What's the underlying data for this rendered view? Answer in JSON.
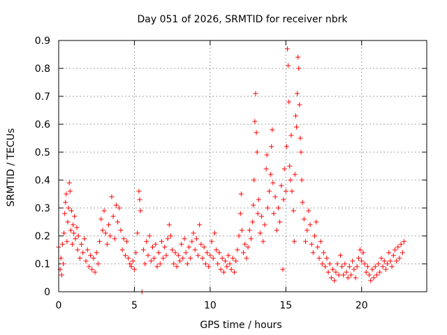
{
  "chart_data": {
    "type": "scatter",
    "title": "Day 051 of 2026, SRMTID for receiver nbrk",
    "xlabel": "GPS time / hours",
    "ylabel": "SRMTID / TECUs",
    "xlim": [
      0,
      24.3
    ],
    "ylim": [
      0,
      0.9
    ],
    "xticks": [
      0,
      5,
      10,
      15,
      20
    ],
    "xtick_labels": [
      "0",
      "5",
      "10",
      "15",
      "20"
    ],
    "yticks": [
      0,
      0.1,
      0.2,
      0.3,
      0.4,
      0.5,
      0.6,
      0.7,
      0.8,
      0.9
    ],
    "ytick_labels": [
      "0",
      "0.1",
      "0.2",
      "0.3",
      "0.4",
      "0.5",
      "0.6",
      "0.7",
      "0.8",
      "0.9"
    ],
    "grid": true,
    "marker": "+",
    "color": "#ff0000",
    "series": [
      {
        "name": "SRMTID",
        "points": [
          [
            0.0,
            0.16
          ],
          [
            0.1,
            0.08
          ],
          [
            0.15,
            0.12
          ],
          [
            0.2,
            0.06
          ],
          [
            0.25,
            0.17
          ],
          [
            0.3,
            0.1
          ],
          [
            0.35,
            0.21
          ],
          [
            0.4,
            0.28
          ],
          [
            0.45,
            0.32
          ],
          [
            0.5,
            0.35
          ],
          [
            0.55,
            0.18
          ],
          [
            0.6,
            0.25
          ],
          [
            0.65,
            0.3
          ],
          [
            0.7,
            0.39
          ],
          [
            0.75,
            0.36
          ],
          [
            0.8,
            0.22
          ],
          [
            0.85,
            0.29
          ],
          [
            0.9,
            0.17
          ],
          [
            0.95,
            0.24
          ],
          [
            1.0,
            0.21
          ],
          [
            1.05,
            0.27
          ],
          [
            1.1,
            0.19
          ],
          [
            1.2,
            0.23
          ],
          [
            1.25,
            0.15
          ],
          [
            1.3,
            0.2
          ],
          [
            1.4,
            0.12
          ],
          [
            1.5,
            0.17
          ],
          [
            1.6,
            0.14
          ],
          [
            1.7,
            0.19
          ],
          [
            1.8,
            0.11
          ],
          [
            1.9,
            0.15
          ],
          [
            2.0,
            0.09
          ],
          [
            2.1,
            0.13
          ],
          [
            2.2,
            0.08
          ],
          [
            2.3,
            0.12
          ],
          [
            2.4,
            0.07
          ],
          [
            2.5,
            0.14
          ],
          [
            2.6,
            0.1
          ],
          [
            2.7,
            0.18
          ],
          [
            2.8,
            0.26
          ],
          [
            2.9,
            0.22
          ],
          [
            3.0,
            0.29
          ],
          [
            3.1,
            0.21
          ],
          [
            3.2,
            0.17
          ],
          [
            3.3,
            0.24
          ],
          [
            3.4,
            0.2
          ],
          [
            3.5,
            0.34
          ],
          [
            3.6,
            0.27
          ],
          [
            3.7,
            0.19
          ],
          [
            3.8,
            0.31
          ],
          [
            3.9,
            0.25
          ],
          [
            4.0,
            0.3
          ],
          [
            4.1,
            0.22
          ],
          [
            4.2,
            0.15
          ],
          [
            4.3,
            0.19
          ],
          [
            4.4,
            0.13
          ],
          [
            4.5,
            0.18
          ],
          [
            4.6,
            0.12
          ],
          [
            4.7,
            0.1
          ],
          [
            4.8,
            0.09
          ],
          [
            4.9,
            0.11
          ],
          [
            5.0,
            0.08
          ],
          [
            5.1,
            0.14
          ],
          [
            5.2,
            0.21
          ],
          [
            5.3,
            0.36
          ],
          [
            5.35,
            0.33
          ],
          [
            5.4,
            0.29
          ],
          [
            5.5,
            0.0
          ],
          [
            5.6,
            0.15
          ],
          [
            5.7,
            0.1
          ],
          [
            5.8,
            0.18
          ],
          [
            5.9,
            0.13
          ],
          [
            6.0,
            0.2
          ],
          [
            6.1,
            0.11
          ],
          [
            6.2,
            0.16
          ],
          [
            6.3,
            0.12
          ],
          [
            6.4,
            0.17
          ],
          [
            6.5,
            0.09
          ],
          [
            6.6,
            0.14
          ],
          [
            6.7,
            0.1
          ],
          [
            6.8,
            0.18
          ],
          [
            6.9,
            0.12
          ],
          [
            7.0,
            0.16
          ],
          [
            7.1,
            0.13
          ],
          [
            7.2,
            0.19
          ],
          [
            7.3,
            0.24
          ],
          [
            7.4,
            0.2
          ],
          [
            7.5,
            0.15
          ],
          [
            7.6,
            0.1
          ],
          [
            7.7,
            0.14
          ],
          [
            7.8,
            0.09
          ],
          [
            7.9,
            0.13
          ],
          [
            8.0,
            0.11
          ],
          [
            8.1,
            0.17
          ],
          [
            8.2,
            0.12
          ],
          [
            8.3,
            0.19
          ],
          [
            8.4,
            0.14
          ],
          [
            8.5,
            0.1
          ],
          [
            8.6,
            0.16
          ],
          [
            8.7,
            0.12
          ],
          [
            8.8,
            0.18
          ],
          [
            8.9,
            0.21
          ],
          [
            9.0,
            0.15
          ],
          [
            9.1,
            0.19
          ],
          [
            9.2,
            0.13
          ],
          [
            9.3,
            0.24
          ],
          [
            9.4,
            0.17
          ],
          [
            9.5,
            0.12
          ],
          [
            9.6,
            0.16
          ],
          [
            9.7,
            0.1
          ],
          [
            9.8,
            0.14
          ],
          [
            9.9,
            0.09
          ],
          [
            10.0,
            0.13
          ],
          [
            10.1,
            0.18
          ],
          [
            10.2,
            0.12
          ],
          [
            10.3,
            0.21
          ],
          [
            10.4,
            0.15
          ],
          [
            10.5,
            0.1
          ],
          [
            10.6,
            0.14
          ],
          [
            10.7,
            0.08
          ],
          [
            10.8,
            0.12
          ],
          [
            10.9,
            0.07
          ],
          [
            11.0,
            0.11
          ],
          [
            11.1,
            0.09
          ],
          [
            11.2,
            0.13
          ],
          [
            11.3,
            0.1
          ],
          [
            11.4,
            0.08
          ],
          [
            11.5,
            0.12
          ],
          [
            11.6,
            0.07
          ],
          [
            11.7,
            0.11
          ],
          [
            11.8,
            0.15
          ],
          [
            11.9,
            0.2
          ],
          [
            12.0,
            0.28
          ],
          [
            12.05,
            0.35
          ],
          [
            12.1,
            0.22
          ],
          [
            12.2,
            0.14
          ],
          [
            12.3,
            0.17
          ],
          [
            12.4,
            0.12
          ],
          [
            12.5,
            0.16
          ],
          [
            12.6,
            0.22
          ],
          [
            12.7,
            0.19
          ],
          [
            12.8,
            0.25
          ],
          [
            12.85,
            0.31
          ],
          [
            12.9,
            0.4
          ],
          [
            12.95,
            0.61
          ],
          [
            13.0,
            0.71
          ],
          [
            13.05,
            0.57
          ],
          [
            13.1,
            0.5
          ],
          [
            13.15,
            0.28
          ],
          [
            13.2,
            0.33
          ],
          [
            13.3,
            0.21
          ],
          [
            13.4,
            0.27
          ],
          [
            13.5,
            0.18
          ],
          [
            13.6,
            0.24
          ],
          [
            13.7,
            0.44
          ],
          [
            13.75,
            0.49
          ],
          [
            13.8,
            0.3
          ],
          [
            13.9,
            0.36
          ],
          [
            14.0,
            0.42
          ],
          [
            14.05,
            0.52
          ],
          [
            14.1,
            0.58
          ],
          [
            14.15,
            0.39
          ],
          [
            14.2,
            0.28
          ],
          [
            14.3,
            0.34
          ],
          [
            14.4,
            0.22
          ],
          [
            14.5,
            0.3
          ],
          [
            14.6,
            0.25
          ],
          [
            14.7,
            0.38
          ],
          [
            14.8,
            0.08
          ],
          [
            14.85,
            0.33
          ],
          [
            14.9,
            0.44
          ],
          [
            15.0,
            0.36
          ],
          [
            15.05,
            0.52
          ],
          [
            15.1,
            0.87
          ],
          [
            15.15,
            0.81
          ],
          [
            15.2,
            0.68
          ],
          [
            15.25,
            0.45
          ],
          [
            15.3,
            0.4
          ],
          [
            15.35,
            0.56
          ],
          [
            15.4,
            0.36
          ],
          [
            15.5,
            0.29
          ],
          [
            15.55,
            0.18
          ],
          [
            15.6,
            0.42
          ],
          [
            15.65,
            0.63
          ],
          [
            15.7,
            0.59
          ],
          [
            15.75,
            0.71
          ],
          [
            15.8,
            0.84
          ],
          [
            15.85,
            0.8
          ],
          [
            15.9,
            0.67
          ],
          [
            15.95,
            0.55
          ],
          [
            16.0,
            0.5
          ],
          [
            16.05,
            0.4
          ],
          [
            16.1,
            0.32
          ],
          [
            16.2,
            0.26
          ],
          [
            16.3,
            0.18
          ],
          [
            16.4,
            0.22
          ],
          [
            16.5,
            0.29
          ],
          [
            16.6,
            0.24
          ],
          [
            16.7,
            0.17
          ],
          [
            16.8,
            0.14
          ],
          [
            16.9,
            0.2
          ],
          [
            17.0,
            0.25
          ],
          [
            17.1,
            0.16
          ],
          [
            17.2,
            0.12
          ],
          [
            17.3,
            0.18
          ],
          [
            17.4,
            0.1
          ],
          [
            17.5,
            0.14
          ],
          [
            17.6,
            0.09
          ],
          [
            17.7,
            0.12
          ],
          [
            17.8,
            0.07
          ],
          [
            17.9,
            0.1
          ],
          [
            18.0,
            0.05
          ],
          [
            18.1,
            0.08
          ],
          [
            18.2,
            0.04
          ],
          [
            18.3,
            0.07
          ],
          [
            18.4,
            0.1
          ],
          [
            18.5,
            0.06
          ],
          [
            18.6,
            0.13
          ],
          [
            18.7,
            0.09
          ],
          [
            18.8,
            0.06
          ],
          [
            18.9,
            0.1
          ],
          [
            19.0,
            0.07
          ],
          [
            19.1,
            0.05
          ],
          [
            19.2,
            0.09
          ],
          [
            19.3,
            0.06
          ],
          [
            19.4,
            0.11
          ],
          [
            19.5,
            0.08
          ],
          [
            19.6,
            0.05
          ],
          [
            19.7,
            0.09
          ],
          [
            19.8,
            0.12
          ],
          [
            19.9,
            0.15
          ],
          [
            20.0,
            0.11
          ],
          [
            20.1,
            0.14
          ],
          [
            20.2,
            0.1
          ],
          [
            20.3,
            0.07
          ],
          [
            20.4,
            0.09
          ],
          [
            20.5,
            0.06
          ],
          [
            20.6,
            0.04
          ],
          [
            20.7,
            0.08
          ],
          [
            20.8,
            0.05
          ],
          [
            20.9,
            0.09
          ],
          [
            21.0,
            0.06
          ],
          [
            21.1,
            0.1
          ],
          [
            21.2,
            0.07
          ],
          [
            21.3,
            0.12
          ],
          [
            21.4,
            0.09
          ],
          [
            21.5,
            0.11
          ],
          [
            21.6,
            0.08
          ],
          [
            21.7,
            0.1
          ],
          [
            21.8,
            0.14
          ],
          [
            21.9,
            0.11
          ],
          [
            22.0,
            0.09
          ],
          [
            22.1,
            0.13
          ],
          [
            22.2,
            0.15
          ],
          [
            22.3,
            0.11
          ],
          [
            22.4,
            0.16
          ],
          [
            22.5,
            0.12
          ],
          [
            22.6,
            0.17
          ],
          [
            22.7,
            0.14
          ],
          [
            22.8,
            0.18
          ]
        ]
      }
    ]
  }
}
